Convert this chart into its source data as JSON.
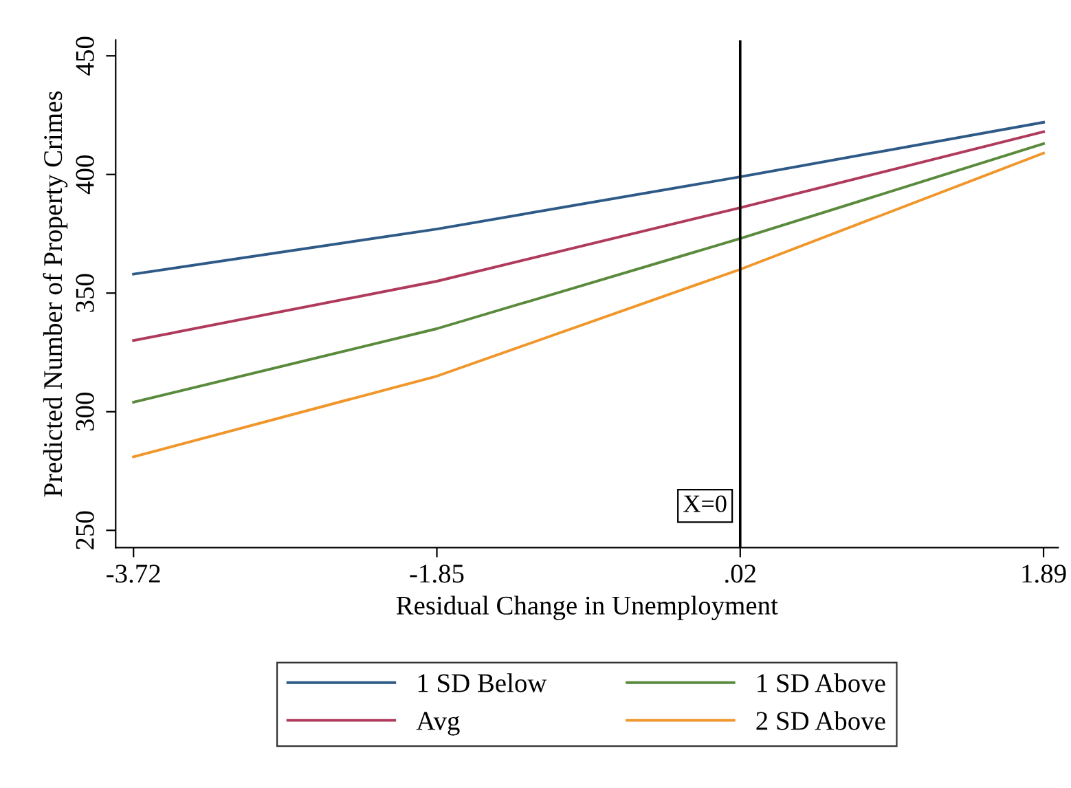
{
  "chart_data": {
    "type": "line",
    "xlabel": "Residual Change in Unemployment",
    "ylabel": "Predicted Number of Property Crimes",
    "x": [
      -3.72,
      -1.85,
      0.02,
      1.89
    ],
    "series": [
      {
        "name": "1 SD Below",
        "color": "#2e5a87",
        "values": [
          358,
          377,
          399,
          422
        ]
      },
      {
        "name": "Avg",
        "color": "#b03a5b",
        "values": [
          330,
          355,
          386,
          418
        ]
      },
      {
        "name": "1 SD Above",
        "color": "#5a8a3c",
        "values": [
          304,
          335,
          373,
          413
        ]
      },
      {
        "name": "2 SD Above",
        "color": "#f0962a",
        "values": [
          281,
          315,
          360,
          409
        ]
      }
    ],
    "xlim": [
      -3.83,
      1.98
    ],
    "ylim": [
      242.7,
      456.6
    ],
    "xticks": [
      {
        "value": -3.72,
        "label": "-3.72"
      },
      {
        "value": -1.85,
        "label": "-1.85"
      },
      {
        "value": 0.02,
        "label": ".02"
      },
      {
        "value": 1.89,
        "label": "1.89"
      }
    ],
    "yticks": [
      250,
      300,
      350,
      400,
      450
    ],
    "ref_lines": [
      {
        "axis": "x",
        "value": 0.02,
        "label": "X=0",
        "color": "#000000"
      }
    ],
    "grid": false,
    "legend": "bottom",
    "marker": "none",
    "line_style": "solid"
  }
}
